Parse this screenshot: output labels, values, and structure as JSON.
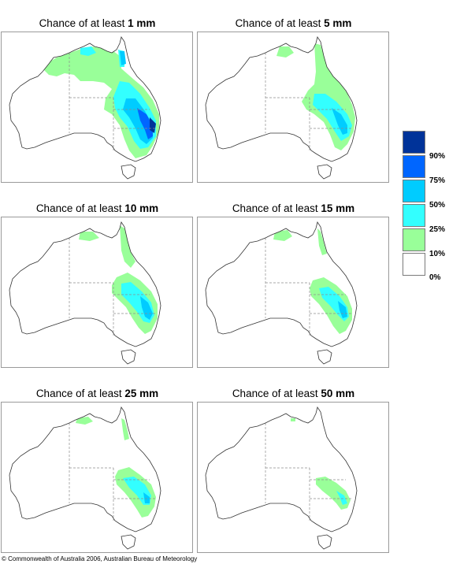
{
  "panels": [
    {
      "prefix": "Chance of at least ",
      "amount": "1 mm"
    },
    {
      "prefix": "Chance of at least ",
      "amount": "5 mm"
    },
    {
      "prefix": "Chance of at least ",
      "amount": "10 mm"
    },
    {
      "prefix": "Chance of at least ",
      "amount": "15 mm"
    },
    {
      "prefix": "Chance of at least ",
      "amount": "25 mm"
    },
    {
      "prefix": "Chance of at least ",
      "amount": "50 mm"
    }
  ],
  "legend": {
    "classes": [
      {
        "color": "#003399"
      },
      {
        "color": "#0066ff"
      },
      {
        "color": "#00ccff"
      },
      {
        "color": "#33ffff"
      },
      {
        "color": "#99ff99"
      },
      {
        "color": "#ffffff"
      }
    ],
    "labels": [
      "90%",
      "75%",
      "50%",
      "25%",
      "10%",
      "0%"
    ]
  },
  "copyright": "© Commonwealth of Australia 2006, Australian Bureau of Meteorology"
}
